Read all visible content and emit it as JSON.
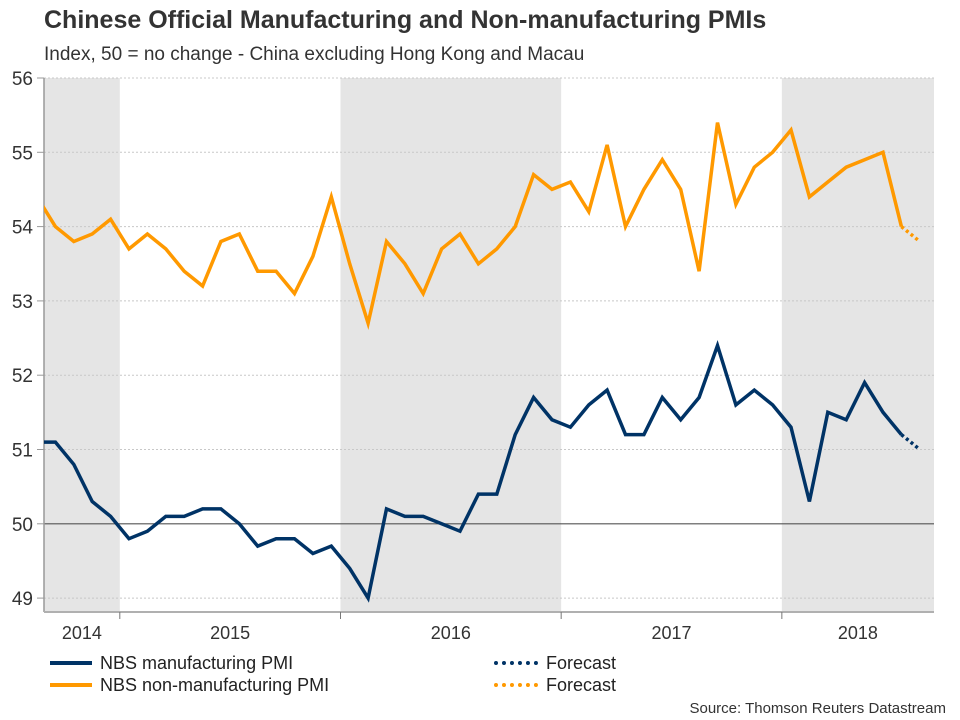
{
  "chart_data": {
    "type": "line",
    "title": "Chinese Official Manufacturing and Non-manufacturing PMIs",
    "subtitle": "Index, 50 = no change - China excluding Hong Kong and Macau",
    "xlabel": "",
    "ylabel": "",
    "ylim": [
      48.8,
      56
    ],
    "yticks": [
      49,
      50,
      51,
      52,
      53,
      54,
      55,
      56
    ],
    "ytick_labels": [
      "49",
      "50",
      "51",
      "52",
      "53",
      "54",
      "55",
      "56"
    ],
    "reference_line": 50,
    "grid": true,
    "x_start_month": "2014-08",
    "x": [
      "2014-08",
      "2014-09",
      "2014-10",
      "2014-11",
      "2014-12",
      "2015-01",
      "2015-02",
      "2015-03",
      "2015-04",
      "2015-05",
      "2015-06",
      "2015-07",
      "2015-08",
      "2015-09",
      "2015-10",
      "2015-11",
      "2015-12",
      "2016-01",
      "2016-02",
      "2016-03",
      "2016-04",
      "2016-05",
      "2016-06",
      "2016-07",
      "2016-08",
      "2016-09",
      "2016-10",
      "2016-11",
      "2016-12",
      "2017-01",
      "2017-02",
      "2017-03",
      "2017-04",
      "2017-05",
      "2017-06",
      "2017-07",
      "2017-08",
      "2017-09",
      "2017-10",
      "2017-11",
      "2017-12",
      "2018-01",
      "2018-02",
      "2018-03",
      "2018-04",
      "2018-05",
      "2018-06",
      "2018-07"
    ],
    "year_labels": [
      "2014",
      "2015",
      "2016",
      "2017",
      "2018"
    ],
    "shaded_years": [
      "2014",
      "2016",
      "2018"
    ],
    "series": [
      {
        "name": "NBS manufacturing PMI",
        "color": "#003366",
        "values": [
          51.1,
          51.1,
          50.8,
          50.3,
          50.1,
          49.8,
          49.9,
          50.1,
          50.1,
          50.2,
          50.2,
          50.0,
          49.7,
          49.8,
          49.8,
          49.6,
          49.7,
          49.4,
          49.0,
          50.2,
          50.1,
          50.1,
          50.0,
          49.9,
          50.4,
          50.4,
          51.2,
          51.7,
          51.4,
          51.3,
          51.6,
          51.8,
          51.2,
          51.2,
          51.7,
          51.4,
          51.7,
          52.4,
          51.6,
          51.8,
          51.6,
          51.3,
          50.3,
          51.5,
          51.4,
          51.9,
          51.5,
          51.2
        ],
        "forecast": {
          "name": "Forecast",
          "x": [
            "2018-07",
            "2018-08"
          ],
          "values": [
            51.2,
            51.0
          ]
        }
      },
      {
        "name": "NBS non-manufacturing PMI",
        "color": "#ff9900",
        "values": [
          54.4,
          54.0,
          53.8,
          53.9,
          54.1,
          53.7,
          53.9,
          53.7,
          53.4,
          53.2,
          53.8,
          53.9,
          53.4,
          53.4,
          53.1,
          53.6,
          54.4,
          53.5,
          52.7,
          53.8,
          53.5,
          53.1,
          53.7,
          53.9,
          53.5,
          53.7,
          54.0,
          54.7,
          54.5,
          54.6,
          54.2,
          55.1,
          54.0,
          54.5,
          54.9,
          54.5,
          53.4,
          55.4,
          54.3,
          54.8,
          55.0,
          55.3,
          54.4,
          54.6,
          54.8,
          54.9,
          55.0,
          54.0
        ],
        "forecast": {
          "name": "Forecast",
          "x": [
            "2018-07",
            "2018-08"
          ],
          "values": [
            54.0,
            53.8
          ]
        }
      }
    ],
    "legend": [
      {
        "label": "NBS manufacturing PMI",
        "color": "#003366",
        "style": "solid"
      },
      {
        "label": "NBS non-manufacturing PMI",
        "color": "#ff9900",
        "style": "solid"
      },
      {
        "label": "Forecast",
        "color": "#003366",
        "style": "dotted"
      },
      {
        "label": "Forecast",
        "color": "#ff9900",
        "style": "dotted"
      }
    ],
    "legend_position": "bottom",
    "source": "Source: Thomson Reuters Datastream"
  },
  "colors": {
    "shade": "#e5e5e5",
    "grid": "#c8c8c8",
    "axis": "#999999",
    "reference": "#555555"
  }
}
